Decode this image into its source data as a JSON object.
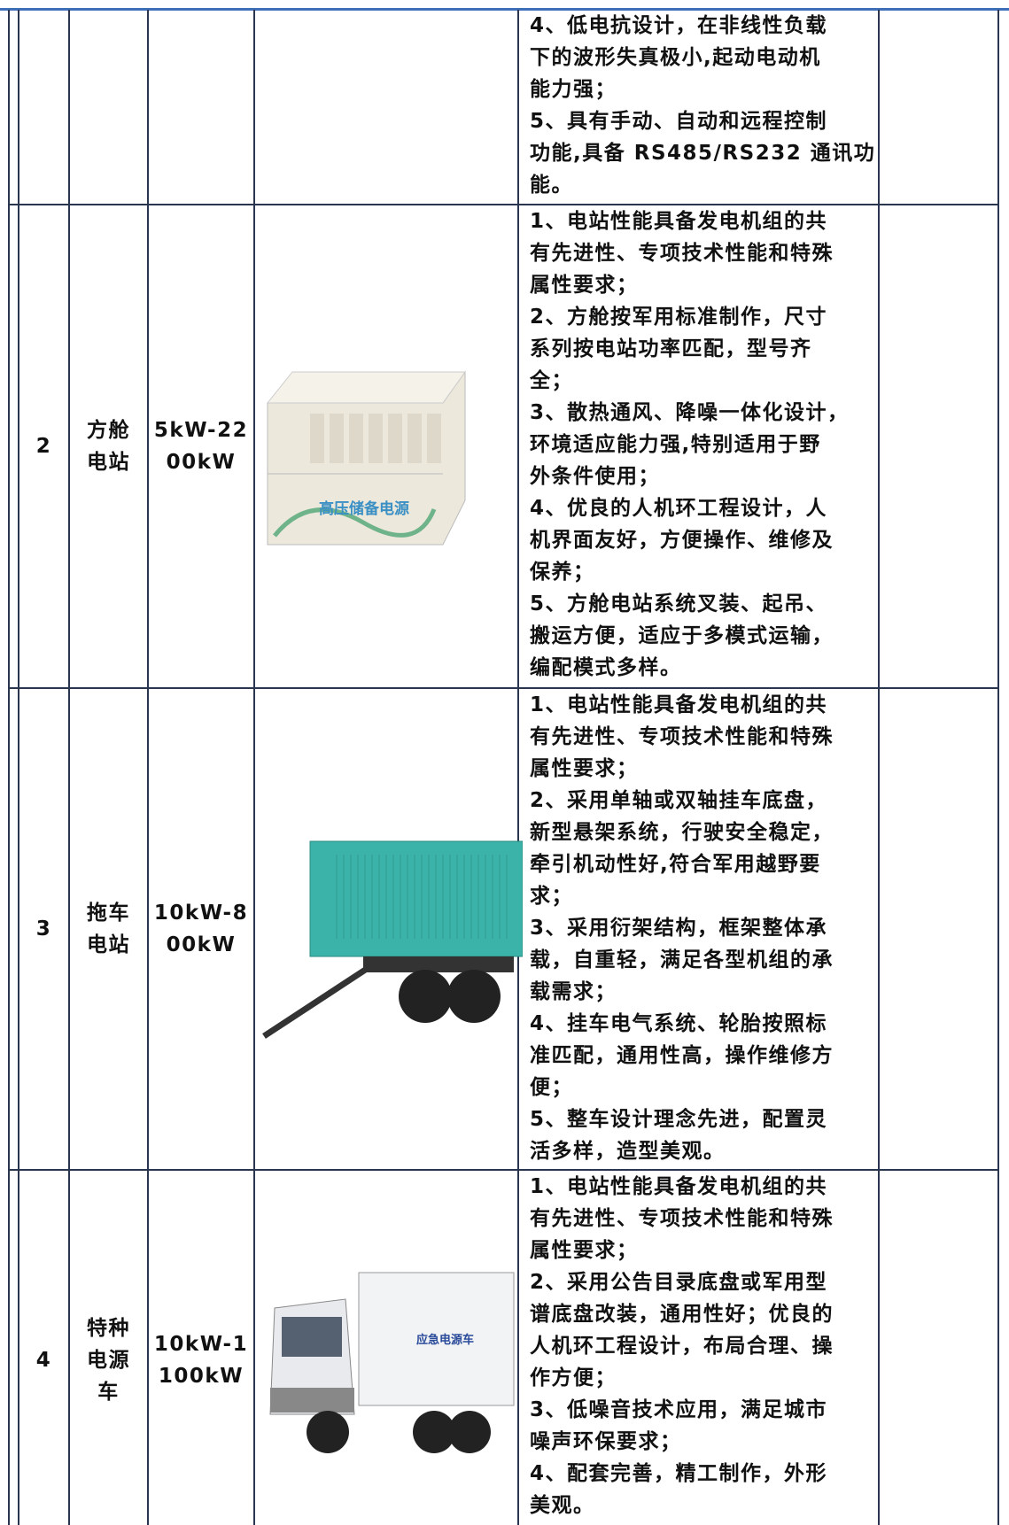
{
  "table": {
    "continued_row": {
      "features": [
        "4、低电抗设计，在非线性负载",
        "下的波形失真极小,起动电动机",
        "能力强；",
        "5、具有手动、自动和远程控制",
        "功能,具备 RS485/RS232 通讯功",
        "能。"
      ]
    },
    "rows": [
      {
        "index": "2",
        "name": [
          "方舱",
          "电站"
        ],
        "power": [
          "5kW-22",
          "00kW"
        ],
        "image_label": "高压储备电源",
        "features": [
          "1、电站性能具备发电机组的共",
          "有先进性、专项技术性能和特殊",
          "属性要求；",
          "2、方舱按军用标准制作，尺寸",
          "系列按电站功率匹配，型号齐",
          "全；",
          "3、散热通风、降噪一体化设计，",
          "环境适应能力强,特别适用于野",
          "外条件使用；",
          "4、优良的人机环工程设计，人",
          "机界面友好，方便操作、维修及",
          "保养；",
          "5、方舱电站系统叉装、起吊、",
          "搬运方便，适应于多模式运输，",
          "编配模式多样。"
        ]
      },
      {
        "index": "3",
        "name": [
          "拖车",
          "电站"
        ],
        "power": [
          "10kW-8",
          "00kW"
        ],
        "features": [
          "1、电站性能具备发电机组的共",
          "有先进性、专项技术性能和特殊",
          "属性要求；",
          "2、采用单轴或双轴挂车底盘，",
          "新型悬架系统，行驶安全稳定，",
          "牵引机动性好,符合军用越野要",
          "求；",
          "3、采用衍架结构，框架整体承",
          "载，自重轻，满足各型机组的承",
          "载需求；",
          "4、挂车电气系统、轮胎按照标",
          "准匹配，通用性高，操作维修方",
          "便；",
          "5、整车设计理念先进，配置灵",
          "活多样，造型美观。"
        ]
      },
      {
        "index": "4",
        "name": [
          "特种",
          "电源",
          "车"
        ],
        "power": [
          "10kW-1",
          "100kW"
        ],
        "image_label": "应急电源车",
        "features": [
          "1、电站性能具备发电机组的共",
          "有先进性、专项技术性能和特殊",
          "属性要求；",
          "2、采用公告目录底盘或军用型",
          "谱底盘改装，通用性好；优良的",
          "人机环工程设计，布局合理、操",
          "作方便；",
          "3、低噪音技术应用，满足城市",
          "噪声环保要求；",
          "4、配套完善，精工制作，外形",
          "美观。"
        ]
      }
    ]
  }
}
